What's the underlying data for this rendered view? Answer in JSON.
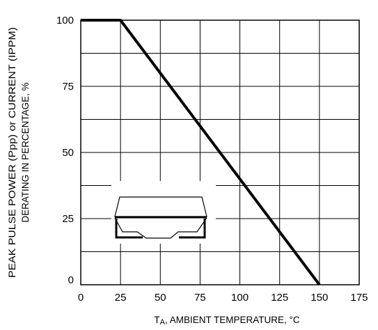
{
  "chart_data": {
    "type": "line",
    "xlabel": {
      "prefix": "T",
      "subscript": "A",
      "rest": ", AMBIENT TEMPERATURE, °C"
    },
    "ylabel": {
      "line1": "PEAK PULSE POWER (Ppp) or CURRENT (IPPM)",
      "line2": "DERATING IN PERCENTAGE, %"
    },
    "xlim": [
      0,
      175
    ],
    "ylim": [
      0,
      100
    ],
    "xticks": [
      0,
      25,
      50,
      75,
      100,
      125,
      150,
      175
    ],
    "yticks": [
      0,
      25,
      50,
      75,
      100
    ],
    "xgrid": [
      25,
      50,
      75,
      100,
      125,
      150
    ],
    "ygrid": [
      12.5,
      25,
      37.5,
      50,
      62.5,
      75,
      87.5
    ],
    "grid": true,
    "series": [
      {
        "x": [
          0,
          25,
          150
        ],
        "y": [
          100,
          100,
          0
        ]
      }
    ],
    "annotations": [
      {
        "type": "package-outline-icon",
        "description": "SMB/DO-214 package outline drawing"
      }
    ]
  }
}
